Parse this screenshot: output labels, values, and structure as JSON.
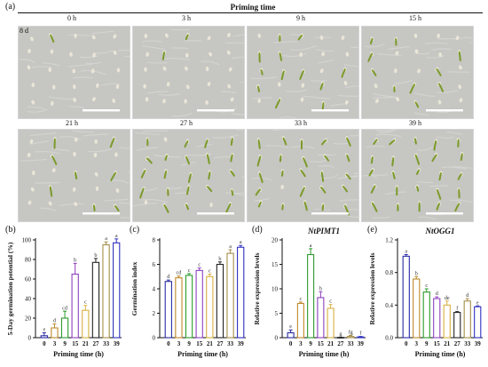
{
  "figure": {
    "panel_a_label": "(a)",
    "priming_time_title": "Priming time",
    "photo_tag": "8 d",
    "time_labels": [
      "0 h",
      "3 h",
      "9 h",
      "15 h",
      "21 h",
      "27 h",
      "33 h",
      "39 h"
    ],
    "panel_labels": [
      "(b)",
      "(c)",
      "(d)",
      "(e)"
    ]
  },
  "colors": {
    "bars": [
      "#2a2aa6",
      "#c0892a",
      "#2b9c2b",
      "#8f3fbf",
      "#d8b040",
      "#222222",
      "#a68e49",
      "#2f2fc0"
    ],
    "photo_bg": "#c6c6c2",
    "seed": "#e9e6d8",
    "sprout": "#7c9a2a",
    "scale_bar": "#ffffff"
  },
  "chart_data": [
    {
      "type": "bar",
      "panel": "(b)",
      "title": "",
      "xlabel": "Priming time (h)",
      "ylabel": "5-Day germination potential (%)",
      "categories": [
        "0",
        "3",
        "9",
        "15",
        "21",
        "27",
        "33",
        "39"
      ],
      "values": [
        2,
        10,
        20,
        65,
        28,
        77,
        95,
        97
      ],
      "errors": [
        3,
        4,
        7,
        11,
        5,
        4,
        3,
        4
      ],
      "letters": [
        "e",
        "d",
        "cd",
        "b",
        "c",
        "b",
        "a",
        "a"
      ],
      "yticks": [
        "0",
        "20",
        "40",
        "60",
        "80",
        "100"
      ],
      "ylim": [
        0,
        100
      ]
    },
    {
      "type": "bar",
      "panel": "(c)",
      "title": "",
      "xlabel": "Priming time (h)",
      "ylabel": "Germination index",
      "categories": [
        "0",
        "3",
        "9",
        "15",
        "21",
        "27",
        "33",
        "39"
      ],
      "values": [
        4.6,
        4.9,
        5.1,
        5.5,
        5.0,
        6.0,
        6.9,
        7.4
      ],
      "errors": [
        0.12,
        0.15,
        0.15,
        0.2,
        0.2,
        0.2,
        0.3,
        0.15
      ],
      "letters": [
        "d",
        "cd",
        "c",
        "c",
        "c",
        "b",
        "a",
        "a"
      ],
      "yticks": [
        "0",
        "2",
        "4",
        "6",
        "8"
      ],
      "ylim": [
        0,
        8
      ]
    },
    {
      "type": "bar",
      "panel": "(d)",
      "title": "NtPIMT1",
      "xlabel": "Priming time (h)",
      "ylabel": "Relative expression levels",
      "categories": [
        "0",
        "3",
        "9",
        "15",
        "21",
        "27",
        "33",
        "39"
      ],
      "values": [
        1,
        7,
        17,
        8.2,
        6,
        0.05,
        0.25,
        0.15
      ],
      "errors": [
        0.6,
        0.3,
        1.2,
        1.2,
        0.8,
        0.05,
        0.2,
        0.1
      ],
      "letters": [
        "e",
        "c",
        "a",
        "b",
        "c",
        "g",
        "fg",
        "f"
      ],
      "yticks": [
        "0",
        "5",
        "10",
        "15",
        "20"
      ],
      "ylim": [
        0,
        20
      ]
    },
    {
      "type": "bar",
      "panel": "(e)",
      "title": "NtOGG1",
      "xlabel": "Priming time (h)",
      "ylabel": "Relative expression levels",
      "categories": [
        "0",
        "3",
        "9",
        "15",
        "21",
        "27",
        "33",
        "39"
      ],
      "values": [
        1.0,
        0.72,
        0.56,
        0.48,
        0.4,
        0.31,
        0.45,
        0.38
      ],
      "errors": [
        0.02,
        0.03,
        0.04,
        0.02,
        0.05,
        0.01,
        0.03,
        0.01
      ],
      "letters": [
        "a",
        "b",
        "c",
        "d",
        "de",
        "f",
        "d",
        "e"
      ],
      "yticks": [
        "0.0",
        "0.4",
        "0.8",
        "1.2"
      ],
      "ylim": [
        0,
        1.2
      ]
    }
  ]
}
